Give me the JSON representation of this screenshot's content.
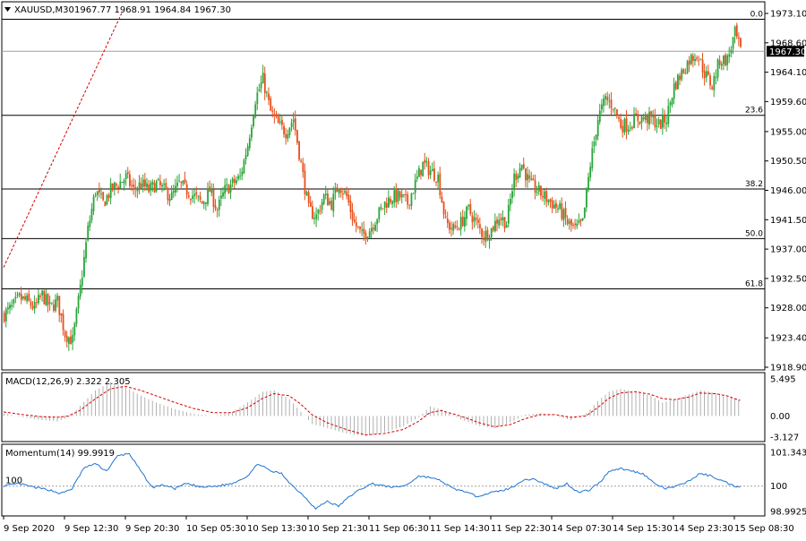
{
  "header": {
    "symbol": "XAUUSD,M30",
    "ohlc": "1967.77 1968.91 1964.84 1967.30",
    "current_price": "1967.30"
  },
  "colors": {
    "bull": "#2ba53a",
    "bear": "#e8501d",
    "grid_line": "#000000",
    "trend": "#d40000",
    "macd_hist": "#b0b0b0",
    "macd_signal": "#d40000",
    "momentum": "#1e74d0",
    "price_tag_bg": "#000000"
  },
  "chart_data": [
    {
      "type": "candlestick",
      "ylim": [
        1918.9,
        1973.1
      ],
      "y_ticks": [
        "1973.10",
        "1968.60",
        "1964.10",
        "1959.60",
        "1955.00",
        "1950.50",
        "1946.00",
        "1941.50",
        "1937.00",
        "1932.50",
        "1928.00",
        "1923.40",
        "1918.90"
      ],
      "fib_levels": [
        {
          "label": "0.0",
          "value": 1972.2
        },
        {
          "label": "23.6",
          "value": 1957.5
        },
        {
          "label": "38.2",
          "value": 1946.2
        },
        {
          "label": "50.0",
          "value": 1938.6
        },
        {
          "label": "61.8",
          "value": 1930.9
        }
      ],
      "current_price_line": 1967.3,
      "trend_line": [
        [
          0,
          1934.2
        ],
        [
          62,
          1973.1
        ]
      ],
      "x_labels": [
        {
          "i": 0,
          "label": "9 Sep 2020"
        },
        {
          "i": 32,
          "label": "9 Sep 12:30"
        },
        {
          "i": 64,
          "label": "9 Sep 20:30"
        },
        {
          "i": 96,
          "label": "10 Sep 05:30"
        },
        {
          "i": 128,
          "label": "10 Sep 13:30"
        },
        {
          "i": 160,
          "label": "10 Sep 21:30"
        },
        {
          "i": 192,
          "label": "11 Sep 06:30"
        },
        {
          "i": 224,
          "label": "11 Sep 14:30"
        },
        {
          "i": 256,
          "label": "11 Sep 22:30"
        },
        {
          "i": 288,
          "label": "14 Sep 07:30"
        },
        {
          "i": 320,
          "label": "14 Sep 15:30"
        },
        {
          "i": 352,
          "label": "14 Sep 23:30"
        },
        {
          "i": 384,
          "label": "15 Sep 08:30"
        }
      ],
      "anchors": [
        [
          0,
          1927
        ],
        [
          4,
          1928
        ],
        [
          8,
          1929.5
        ],
        [
          12,
          1929
        ],
        [
          16,
          1928
        ],
        [
          20,
          1930
        ],
        [
          24,
          1928
        ],
        [
          28,
          1929
        ],
        [
          32,
          1924
        ],
        [
          36,
          1923
        ],
        [
          40,
          1931
        ],
        [
          44,
          1940
        ],
        [
          48,
          1946
        ],
        [
          52,
          1944
        ],
        [
          56,
          1946
        ],
        [
          60,
          1947
        ],
        [
          64,
          1948
        ],
        [
          68,
          1946
        ],
        [
          72,
          1947
        ],
        [
          76,
          1946
        ],
        [
          80,
          1947
        ],
        [
          84,
          1946
        ],
        [
          88,
          1945
        ],
        [
          92,
          1947
        ],
        [
          96,
          1946
        ],
        [
          100,
          1945
        ],
        [
          104,
          1944
        ],
        [
          108,
          1946
        ],
        [
          112,
          1943
        ],
        [
          116,
          1946
        ],
        [
          120,
          1947
        ],
        [
          124,
          1948
        ],
        [
          128,
          1953
        ],
        [
          132,
          1960
        ],
        [
          136,
          1963
        ],
        [
          140,
          1958
        ],
        [
          144,
          1956
        ],
        [
          148,
          1955
        ],
        [
          152,
          1957
        ],
        [
          156,
          1950
        ],
        [
          160,
          1943
        ],
        [
          164,
          1942
        ],
        [
          168,
          1945
        ],
        [
          172,
          1944
        ],
        [
          176,
          1947
        ],
        [
          180,
          1945
        ],
        [
          184,
          1941
        ],
        [
          188,
          1939
        ],
        [
          192,
          1940
        ],
        [
          196,
          1942
        ],
        [
          200,
          1944
        ],
        [
          204,
          1945
        ],
        [
          208,
          1945
        ],
        [
          212,
          1944
        ],
        [
          216,
          1947
        ],
        [
          220,
          1950
        ],
        [
          224,
          1949
        ],
        [
          228,
          1948
        ],
        [
          232,
          1941
        ],
        [
          236,
          1940
        ],
        [
          240,
          1941
        ],
        [
          244,
          1943
        ],
        [
          248,
          1941
        ],
        [
          252,
          1939
        ],
        [
          256,
          1940
        ],
        [
          260,
          1942
        ],
        [
          264,
          1941
        ],
        [
          268,
          1948
        ],
        [
          272,
          1950
        ],
        [
          276,
          1947
        ],
        [
          280,
          1946
        ],
        [
          284,
          1945
        ],
        [
          288,
          1944
        ],
        [
          292,
          1943
        ],
        [
          296,
          1941
        ],
        [
          300,
          1940
        ],
        [
          304,
          1941
        ],
        [
          308,
          1950
        ],
        [
          312,
          1957
        ],
        [
          316,
          1960
        ],
        [
          320,
          1959
        ],
        [
          324,
          1956
        ],
        [
          328,
          1956
        ],
        [
          332,
          1957
        ],
        [
          336,
          1957
        ],
        [
          340,
          1957
        ],
        [
          344,
          1956
        ],
        [
          348,
          1957
        ],
        [
          352,
          1962
        ],
        [
          356,
          1964
        ],
        [
          360,
          1966
        ],
        [
          364,
          1967
        ],
        [
          368,
          1964
        ],
        [
          372,
          1962
        ],
        [
          376,
          1966
        ],
        [
          380,
          1966
        ],
        [
          384,
          1970
        ],
        [
          387,
          1967.3
        ]
      ]
    },
    {
      "type": "histogram+line",
      "title": "MACD(12,26,9) 2.322 2.305",
      "ylim": [
        -3.127,
        5.495
      ],
      "y_ticks": [
        "5.495",
        "0.00",
        "-3.127"
      ],
      "hist_anchors": [
        [
          0,
          0.4
        ],
        [
          10,
          -0.2
        ],
        [
          20,
          -0.6
        ],
        [
          28,
          -0.8
        ],
        [
          34,
          -0.2
        ],
        [
          40,
          1.5
        ],
        [
          48,
          3.8
        ],
        [
          56,
          5.0
        ],
        [
          64,
          4.3
        ],
        [
          72,
          3.0
        ],
        [
          80,
          2.0
        ],
        [
          90,
          1.0
        ],
        [
          100,
          0.3
        ],
        [
          110,
          0.0
        ],
        [
          120,
          0.6
        ],
        [
          128,
          2.0
        ],
        [
          136,
          3.6
        ],
        [
          142,
          3.8
        ],
        [
          150,
          2.5
        ],
        [
          156,
          0.6
        ],
        [
          162,
          -1.2
        ],
        [
          170,
          -1.8
        ],
        [
          180,
          -2.6
        ],
        [
          190,
          -3.0
        ],
        [
          200,
          -2.4
        ],
        [
          210,
          -1.5
        ],
        [
          218,
          -0.2
        ],
        [
          224,
          1.4
        ],
        [
          230,
          1.0
        ],
        [
          240,
          -0.5
        ],
        [
          250,
          -1.5
        ],
        [
          258,
          -1.8
        ],
        [
          266,
          -1.0
        ],
        [
          274,
          0.2
        ],
        [
          282,
          0.4
        ],
        [
          290,
          0.0
        ],
        [
          298,
          -0.6
        ],
        [
          306,
          0.4
        ],
        [
          312,
          2.2
        ],
        [
          318,
          3.6
        ],
        [
          324,
          4.0
        ],
        [
          332,
          3.6
        ],
        [
          340,
          3.0
        ],
        [
          346,
          2.0
        ],
        [
          352,
          2.4
        ],
        [
          360,
          3.2
        ],
        [
          366,
          3.8
        ],
        [
          374,
          3.4
        ],
        [
          380,
          3.0
        ],
        [
          387,
          2.322
        ]
      ],
      "signal_anchors": [
        [
          0,
          0.6
        ],
        [
          10,
          0.2
        ],
        [
          20,
          -0.1
        ],
        [
          28,
          -0.2
        ],
        [
          34,
          0.0
        ],
        [
          40,
          0.8
        ],
        [
          48,
          2.5
        ],
        [
          56,
          4.0
        ],
        [
          64,
          4.4
        ],
        [
          72,
          3.8
        ],
        [
          80,
          3.0
        ],
        [
          90,
          2.0
        ],
        [
          100,
          1.1
        ],
        [
          110,
          0.5
        ],
        [
          120,
          0.5
        ],
        [
          128,
          1.2
        ],
        [
          136,
          2.6
        ],
        [
          142,
          3.3
        ],
        [
          150,
          3.0
        ],
        [
          156,
          1.8
        ],
        [
          162,
          0.2
        ],
        [
          170,
          -1.0
        ],
        [
          180,
          -2.0
        ],
        [
          190,
          -2.8
        ],
        [
          200,
          -2.6
        ],
        [
          210,
          -2.0
        ],
        [
          218,
          -0.8
        ],
        [
          224,
          0.5
        ],
        [
          230,
          0.8
        ],
        [
          240,
          0.0
        ],
        [
          250,
          -1.0
        ],
        [
          258,
          -1.6
        ],
        [
          266,
          -1.3
        ],
        [
          274,
          -0.4
        ],
        [
          282,
          0.2
        ],
        [
          290,
          0.2
        ],
        [
          298,
          -0.2
        ],
        [
          306,
          0.0
        ],
        [
          312,
          1.2
        ],
        [
          318,
          2.6
        ],
        [
          324,
          3.4
        ],
        [
          332,
          3.6
        ],
        [
          340,
          3.2
        ],
        [
          346,
          2.6
        ],
        [
          352,
          2.4
        ],
        [
          360,
          2.8
        ],
        [
          366,
          3.4
        ],
        [
          374,
          3.3
        ],
        [
          380,
          3.0
        ],
        [
          387,
          2.305
        ]
      ]
    },
    {
      "type": "line",
      "title": "Momentum(14) 99.9919",
      "ylim": [
        98.9925,
        101.3438
      ],
      "reference": 100,
      "reference_label": "100",
      "y_ticks": [
        "101.3438",
        "100",
        "98.9925"
      ],
      "anchors": [
        [
          0,
          100.0
        ],
        [
          8,
          100.1
        ],
        [
          16,
          99.95
        ],
        [
          24,
          99.85
        ],
        [
          30,
          99.7
        ],
        [
          36,
          99.9
        ],
        [
          42,
          100.7
        ],
        [
          48,
          100.9
        ],
        [
          54,
          100.6
        ],
        [
          60,
          101.2
        ],
        [
          66,
          101.3
        ],
        [
          72,
          100.6
        ],
        [
          78,
          99.95
        ],
        [
          84,
          100.05
        ],
        [
          90,
          99.9
        ],
        [
          96,
          100.1
        ],
        [
          104,
          99.95
        ],
        [
          112,
          100.0
        ],
        [
          120,
          100.1
        ],
        [
          128,
          100.4
        ],
        [
          134,
          100.9
        ],
        [
          140,
          100.6
        ],
        [
          146,
          100.5
        ],
        [
          152,
          100.0
        ],
        [
          158,
          99.6
        ],
        [
          164,
          99.1
        ],
        [
          170,
          99.4
        ],
        [
          176,
          99.2
        ],
        [
          182,
          99.6
        ],
        [
          188,
          99.9
        ],
        [
          194,
          100.1
        ],
        [
          200,
          100.0
        ],
        [
          206,
          99.95
        ],
        [
          212,
          100.05
        ],
        [
          218,
          100.4
        ],
        [
          224,
          100.35
        ],
        [
          230,
          100.2
        ],
        [
          236,
          99.9
        ],
        [
          242,
          99.8
        ],
        [
          248,
          99.6
        ],
        [
          254,
          99.7
        ],
        [
          260,
          99.8
        ],
        [
          266,
          99.9
        ],
        [
          272,
          100.2
        ],
        [
          278,
          100.3
        ],
        [
          284,
          100.1
        ],
        [
          290,
          99.9
        ],
        [
          296,
          100.1
        ],
        [
          302,
          99.75
        ],
        [
          308,
          99.85
        ],
        [
          314,
          100.2
        ],
        [
          318,
          100.6
        ],
        [
          324,
          100.7
        ],
        [
          330,
          100.6
        ],
        [
          336,
          100.5
        ],
        [
          342,
          100.1
        ],
        [
          348,
          99.9
        ],
        [
          354,
          100.0
        ],
        [
          360,
          100.2
        ],
        [
          366,
          100.5
        ],
        [
          372,
          100.4
        ],
        [
          378,
          100.2
        ],
        [
          384,
          100.0
        ],
        [
          387,
          99.9919
        ]
      ]
    }
  ]
}
